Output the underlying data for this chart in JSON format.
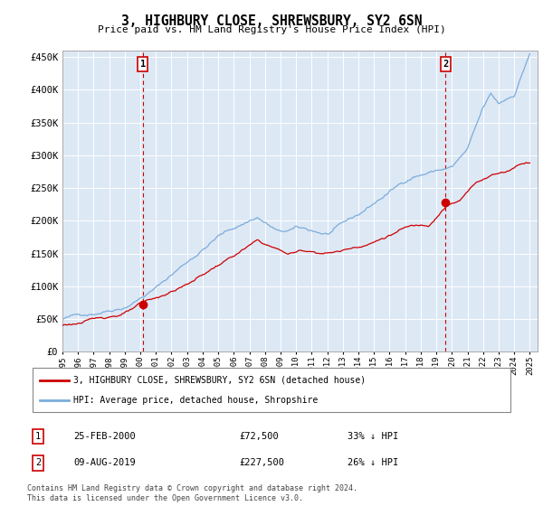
{
  "title": "3, HIGHBURY CLOSE, SHREWSBURY, SY2 6SN",
  "subtitle": "Price paid vs. HM Land Registry's House Price Index (HPI)",
  "legend_line1": "3, HIGHBURY CLOSE, SHREWSBURY, SY2 6SN (detached house)",
  "legend_line2": "HPI: Average price, detached house, Shropshire",
  "annotation1_label": "1",
  "annotation1_date": "25-FEB-2000",
  "annotation1_price": "£72,500",
  "annotation1_hpi": "33% ↓ HPI",
  "annotation2_label": "2",
  "annotation2_date": "09-AUG-2019",
  "annotation2_price": "£227,500",
  "annotation2_hpi": "26% ↓ HPI",
  "footnote": "Contains HM Land Registry data © Crown copyright and database right 2024.\nThis data is licensed under the Open Government Licence v3.0.",
  "hpi_color": "#7aaddc",
  "price_color": "#cc0000",
  "annotation_box_color": "#cc0000",
  "chart_bg_color": "#dde8f5",
  "background_color": "#ffffff",
  "ylim": [
    0,
    460000
  ],
  "yticks": [
    0,
    50000,
    100000,
    150000,
    200000,
    250000,
    300000,
    350000,
    400000,
    450000
  ],
  "xlim_start": 1995.0,
  "xlim_end": 2025.5,
  "purchase1_x": 2000.15,
  "purchase1_y": 72500,
  "purchase2_x": 2019.6,
  "purchase2_y": 227500
}
